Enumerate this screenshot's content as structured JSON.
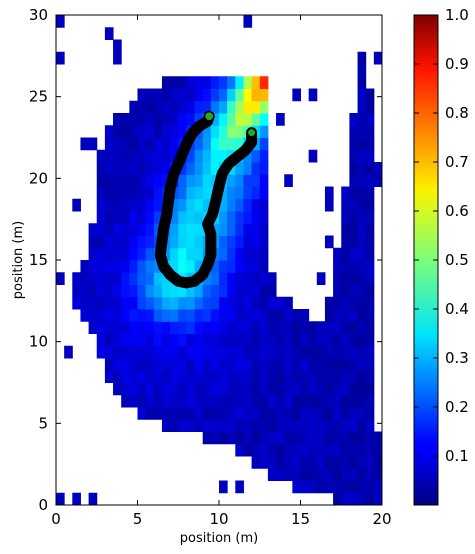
{
  "chart_data": {
    "type": "heatmap",
    "title": "",
    "xlabel": "position (m)",
    "ylabel": "position (m)",
    "xlim": [
      0,
      20
    ],
    "ylim": [
      0,
      30
    ],
    "xticks": [
      0,
      5,
      10,
      15,
      20
    ],
    "yticks": [
      0,
      5,
      10,
      15,
      20,
      25,
      30
    ],
    "colormap": "jet",
    "colorbar": {
      "range": [
        0,
        1.0
      ],
      "ticks": [
        0.1,
        0.2,
        0.3,
        0.4,
        0.5,
        0.6,
        0.7,
        0.8,
        0.9,
        1.0
      ],
      "tick_labels": [
        "0.1",
        "0.2",
        "0.3",
        "0.4",
        "0.5",
        "0.6",
        "0.7",
        "0.8",
        "0.9",
        "1.0"
      ]
    },
    "heatmap_description": "normalized occupancy density; high-density ridge running from about (8,14) up to (12.8,25.8), decreasing toward a broad low-density cloud spreading down to (20,0)",
    "trajectory": {
      "color": "#000000",
      "points": [
        [
          12.0,
          22.8
        ],
        [
          12.0,
          22.2
        ],
        [
          11.6,
          21.7
        ],
        [
          11.1,
          21.3
        ],
        [
          10.6,
          20.9
        ],
        [
          10.2,
          20.3
        ],
        [
          10.0,
          19.5
        ],
        [
          9.8,
          18.6
        ],
        [
          9.6,
          17.8
        ],
        [
          9.3,
          17.2
        ],
        [
          9.5,
          16.6
        ],
        [
          9.5,
          16.0
        ],
        [
          9.5,
          15.3
        ],
        [
          9.3,
          14.7
        ],
        [
          9.0,
          14.1
        ],
        [
          8.5,
          13.7
        ],
        [
          8.0,
          13.6
        ],
        [
          7.5,
          13.7
        ],
        [
          7.0,
          14.1
        ],
        [
          6.6,
          14.6
        ],
        [
          6.4,
          15.3
        ],
        [
          6.5,
          16.1
        ],
        [
          6.6,
          16.9
        ],
        [
          6.8,
          17.8
        ],
        [
          6.9,
          18.6
        ],
        [
          7.0,
          19.4
        ],
        [
          7.2,
          20.2
        ],
        [
          7.5,
          20.9
        ],
        [
          7.8,
          21.6
        ],
        [
          8.1,
          22.3
        ],
        [
          8.4,
          22.8
        ],
        [
          8.8,
          23.2
        ],
        [
          9.3,
          23.5
        ],
        [
          9.4,
          23.8
        ]
      ],
      "start_marker": {
        "x": 9.4,
        "y": 23.8,
        "color": "#22aa22"
      },
      "end_marker": {
        "x": 12.0,
        "y": 22.8,
        "color": "#22aa22"
      }
    }
  }
}
